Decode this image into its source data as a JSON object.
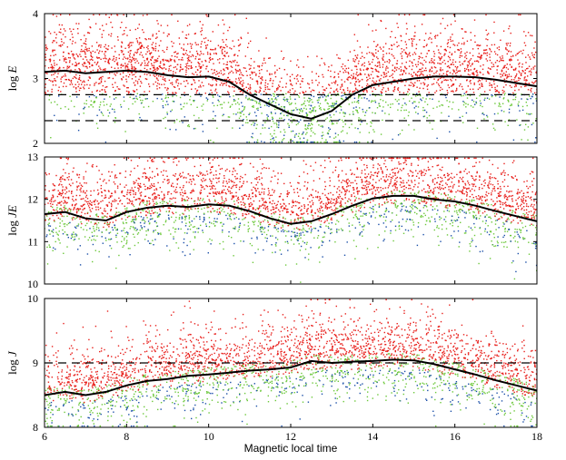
{
  "chart_data": {
    "type": "scatter",
    "xlabel": "Magnetic local time",
    "xlim": [
      6,
      18
    ],
    "xticks": [
      "6",
      "8",
      "10",
      "12",
      "14",
      "16",
      "18"
    ],
    "series_colors": {
      "high": "#e8201c",
      "medium": "#6cc83a",
      "low": "#1b4fa8",
      "median": "#000000"
    },
    "panels": [
      {
        "id": "E",
        "ylabel_prefix": "log",
        "ylabel_var": "E",
        "ylim": [
          2,
          4
        ],
        "yticks": [
          "2",
          "3",
          "4"
        ],
        "ref_lines": [
          2.75,
          2.35
        ],
        "median": {
          "x": [
            6,
            6.5,
            7,
            7.5,
            8,
            8.5,
            9,
            9.5,
            10,
            10.5,
            11,
            11.5,
            12,
            12.5,
            13,
            13.5,
            14,
            14.5,
            15,
            15.5,
            16,
            16.5,
            17,
            17.5,
            18
          ],
          "y": [
            3.1,
            3.12,
            3.08,
            3.1,
            3.12,
            3.1,
            3.05,
            3.02,
            3.03,
            2.95,
            2.75,
            2.6,
            2.45,
            2.38,
            2.5,
            2.75,
            2.9,
            2.95,
            3.0,
            3.03,
            3.03,
            3.02,
            2.98,
            2.93,
            2.88
          ]
        }
      },
      {
        "id": "JE",
        "ylabel_prefix": "log",
        "ylabel_var": "JE",
        "ylim": [
          10,
          13
        ],
        "yticks": [
          "10",
          "11",
          "12",
          "13"
        ],
        "ref_lines": [],
        "median": {
          "x": [
            6,
            6.5,
            7,
            7.5,
            8,
            8.5,
            9,
            9.5,
            10,
            10.5,
            11,
            11.5,
            12,
            12.5,
            13,
            13.5,
            14,
            14.5,
            15,
            15.5,
            16,
            16.5,
            17,
            17.5,
            18
          ],
          "y": [
            11.65,
            11.7,
            11.55,
            11.5,
            11.7,
            11.8,
            11.85,
            11.82,
            11.88,
            11.85,
            11.72,
            11.55,
            11.42,
            11.48,
            11.65,
            11.85,
            12.02,
            12.08,
            12.08,
            12.0,
            11.95,
            11.85,
            11.72,
            11.6,
            11.48
          ]
        }
      },
      {
        "id": "J",
        "ylabel_prefix": "log",
        "ylabel_var": "J",
        "ylim": [
          8,
          10
        ],
        "yticks": [
          "8",
          "9",
          "10"
        ],
        "ref_lines": [
          9.0
        ],
        "median": {
          "x": [
            6,
            6.5,
            7,
            7.5,
            8,
            8.5,
            9,
            9.5,
            10,
            10.5,
            11,
            11.5,
            12,
            12.5,
            13,
            13.5,
            14,
            14.5,
            15,
            15.5,
            16,
            16.5,
            17,
            17.5,
            18
          ],
          "y": [
            8.5,
            8.55,
            8.5,
            8.55,
            8.65,
            8.72,
            8.75,
            8.8,
            8.82,
            8.85,
            8.88,
            8.9,
            8.93,
            9.03,
            9.0,
            9.02,
            9.03,
            9.05,
            9.04,
            8.98,
            8.9,
            8.82,
            8.73,
            8.65,
            8.57
          ]
        }
      }
    ]
  }
}
